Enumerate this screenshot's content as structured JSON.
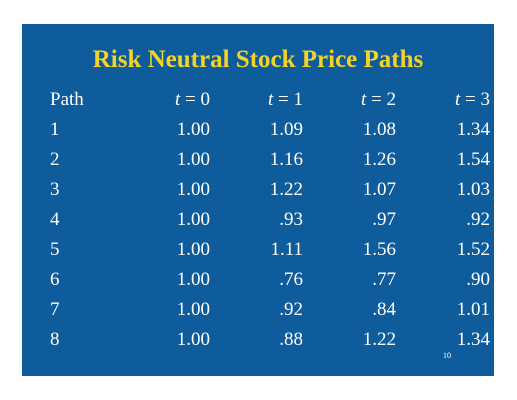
{
  "slide": {
    "title": "Risk Neutral Stock Price Paths",
    "page_number": "10",
    "title_color": "#f2d32a",
    "background_color": "#0f5c9c"
  },
  "table": {
    "headers": [
      {
        "label": "Path"
      },
      {
        "var": "t",
        "rest": " = 0"
      },
      {
        "var": "t",
        "rest": " = 1"
      },
      {
        "var": "t",
        "rest": " = 2"
      },
      {
        "var": "t",
        "rest": " = 3"
      }
    ],
    "rows": [
      [
        "1",
        "1.00",
        "1.09",
        "1.08",
        "1.34"
      ],
      [
        "2",
        "1.00",
        "1.16",
        "1.26",
        "1.54"
      ],
      [
        "3",
        "1.00",
        "1.22",
        "1.07",
        "1.03"
      ],
      [
        "4",
        "1.00",
        ".93",
        ".97",
        ".92"
      ],
      [
        "5",
        "1.00",
        "1.11",
        "1.56",
        "1.52"
      ],
      [
        "6",
        "1.00",
        ".76",
        ".77",
        ".90"
      ],
      [
        "7",
        "1.00",
        ".92",
        ".84",
        "1.01"
      ],
      [
        "8",
        "1.00",
        ".88",
        "1.22",
        "1.34"
      ]
    ]
  }
}
